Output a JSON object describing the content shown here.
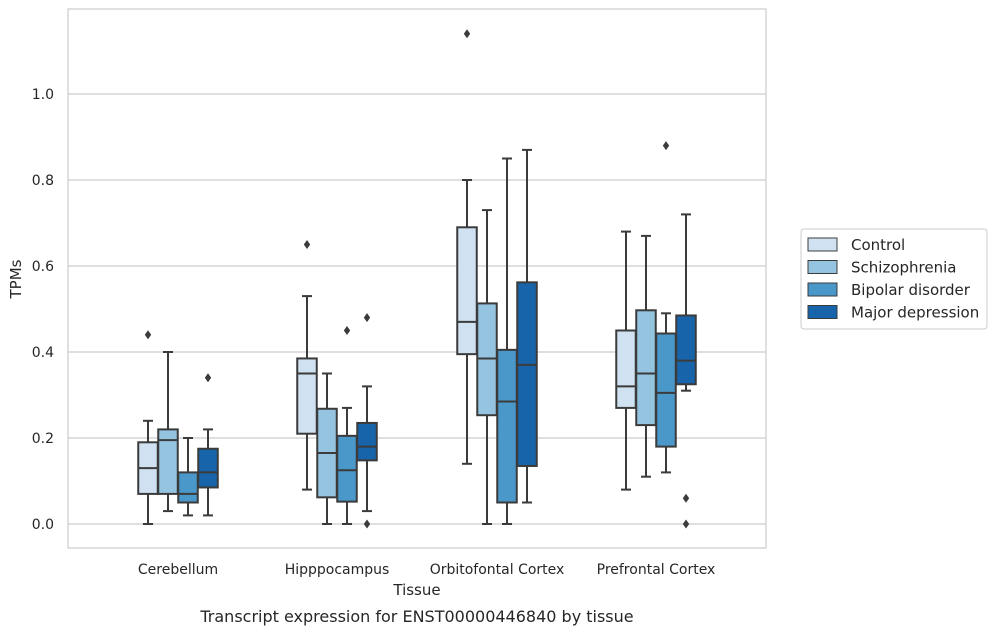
{
  "chart_data": {
    "type": "boxplot",
    "xlabel": "Tissue",
    "ylabel": "TPMs",
    "caption": "Transcript expression for ENST00000446840 by tissue",
    "ylim": [
      -0.055,
      1.2
    ],
    "yticks": [
      0.0,
      0.2,
      0.4,
      0.6,
      0.8,
      1.0
    ],
    "ytick_labels": [
      "0.0",
      "0.2",
      "0.4",
      "0.6",
      "0.8",
      "1.0"
    ],
    "grid": "horizontal",
    "legend_position": "right",
    "categories": [
      "Cerebellum",
      "Hipppocampus",
      "Orbitofontal Cortex",
      "Prefrontal Cortex"
    ],
    "series": [
      {
        "name": "Control",
        "color": "#d0e1f2",
        "boxes": [
          {
            "whislo": 0.0,
            "q1": 0.07,
            "med": 0.13,
            "q3": 0.19,
            "whishi": 0.24,
            "fliers": [
              0.44
            ]
          },
          {
            "whislo": 0.08,
            "q1": 0.21,
            "med": 0.35,
            "q3": 0.385,
            "whishi": 0.53,
            "fliers": [
              0.65
            ]
          },
          {
            "whislo": 0.14,
            "q1": 0.395,
            "med": 0.47,
            "q3": 0.69,
            "whishi": 0.8,
            "fliers": [
              1.14
            ]
          },
          {
            "whislo": 0.08,
            "q1": 0.27,
            "med": 0.32,
            "q3": 0.45,
            "whishi": 0.68,
            "fliers": []
          }
        ]
      },
      {
        "name": "Schizophrenia",
        "color": "#94c4df",
        "boxes": [
          {
            "whislo": 0.03,
            "q1": 0.07,
            "med": 0.195,
            "q3": 0.22,
            "whishi": 0.4,
            "fliers": []
          },
          {
            "whislo": 0.0,
            "q1": 0.062,
            "med": 0.165,
            "q3": 0.268,
            "whishi": 0.35,
            "fliers": []
          },
          {
            "whislo": 0.0,
            "q1": 0.253,
            "med": 0.385,
            "q3": 0.513,
            "whishi": 0.73,
            "fliers": []
          },
          {
            "whislo": 0.11,
            "q1": 0.23,
            "med": 0.35,
            "q3": 0.497,
            "whishi": 0.67,
            "fliers": []
          }
        ]
      },
      {
        "name": "Bipolar disorder",
        "color": "#4a98c9",
        "boxes": [
          {
            "whislo": 0.02,
            "q1": 0.05,
            "med": 0.07,
            "q3": 0.12,
            "whishi": 0.2,
            "fliers": []
          },
          {
            "whislo": 0.0,
            "q1": 0.052,
            "med": 0.125,
            "q3": 0.205,
            "whishi": 0.27,
            "fliers": [
              0.45
            ]
          },
          {
            "whislo": 0.0,
            "q1": 0.05,
            "med": 0.285,
            "q3": 0.405,
            "whishi": 0.85,
            "fliers": []
          },
          {
            "whislo": 0.12,
            "q1": 0.18,
            "med": 0.305,
            "q3": 0.443,
            "whishi": 0.49,
            "fliers": [
              0.88
            ]
          }
        ]
      },
      {
        "name": "Major depression",
        "color": "#1764ab",
        "boxes": [
          {
            "whislo": 0.02,
            "q1": 0.085,
            "med": 0.12,
            "q3": 0.175,
            "whishi": 0.22,
            "fliers": [
              0.34
            ]
          },
          {
            "whislo": 0.03,
            "q1": 0.148,
            "med": 0.18,
            "q3": 0.235,
            "whishi": 0.32,
            "fliers": [
              0.48,
              0.0
            ]
          },
          {
            "whislo": 0.05,
            "q1": 0.135,
            "med": 0.37,
            "q3": 0.562,
            "whishi": 0.87,
            "fliers": []
          },
          {
            "whislo": 0.31,
            "q1": 0.325,
            "med": 0.38,
            "q3": 0.485,
            "whishi": 0.72,
            "fliers": [
              0.06,
              0.0
            ]
          }
        ]
      }
    ]
  }
}
